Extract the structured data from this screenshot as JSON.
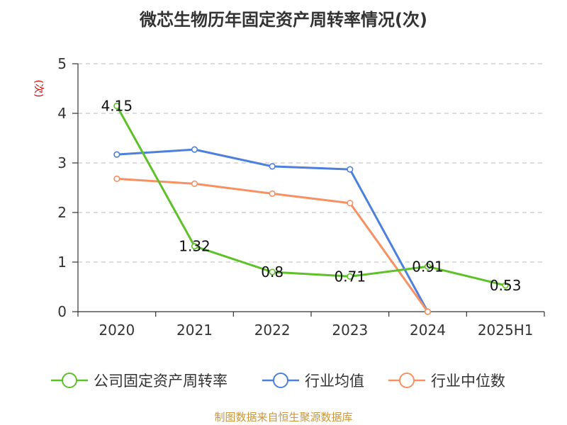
{
  "chart_data": {
    "type": "line",
    "title": "微芯生物历年固定资产周转率情况(次)",
    "ylabel": "(次)",
    "categories": [
      "2020",
      "2021",
      "2022",
      "2023",
      "2024",
      "2025H1"
    ],
    "ylim": [
      0,
      5
    ],
    "yticks": [
      "0",
      "1",
      "2",
      "3",
      "4",
      "5"
    ],
    "grid": true,
    "legend_position": "bottom",
    "series": [
      {
        "name": "公司固定资产周转率",
        "color": "#5ec12a",
        "values": [
          4.15,
          1.32,
          0.8,
          0.71,
          0.91,
          0.53
        ],
        "labels": [
          "4.15",
          "1.32",
          "0.8",
          "0.71",
          "0.91",
          "0.53"
        ]
      },
      {
        "name": "行业均值",
        "color": "#4d7fdc",
        "values": [
          3.17,
          3.27,
          2.93,
          2.87,
          0,
          null
        ]
      },
      {
        "name": "行业中位数",
        "color": "#f59163",
        "values": [
          2.68,
          2.58,
          2.38,
          2.19,
          0,
          null
        ]
      }
    ],
    "source": "制图数据来自恒生聚源数据库"
  }
}
